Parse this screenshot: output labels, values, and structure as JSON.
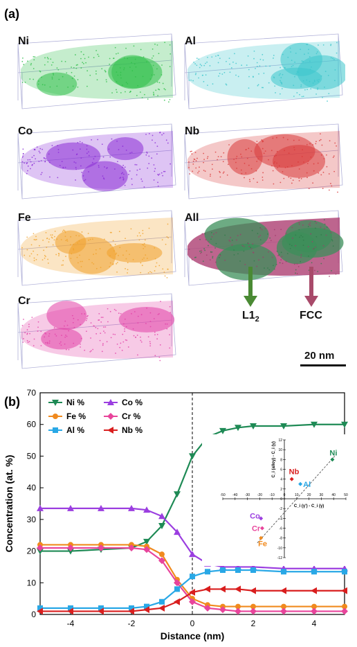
{
  "panel_a": {
    "label": "(a)",
    "tiles": [
      {
        "element": "Ni",
        "color": "#2fbf4a"
      },
      {
        "element": "Al",
        "color": "#3cc6cc"
      },
      {
        "element": "Co",
        "color": "#8a2bd6"
      },
      {
        "element": "Nb",
        "color": "#d93a3a"
      },
      {
        "element": "Fe",
        "color": "#f0a12a"
      },
      {
        "element": "All",
        "color": "#3c8f5a"
      },
      {
        "element": "Cr",
        "color": "#e23fa6"
      }
    ],
    "arrow_l12": "L1",
    "arrow_l12_sub": "2",
    "arrow_fcc": "FCC",
    "scale_bar": "20 nm"
  },
  "panel_b": {
    "label": "(b)"
  },
  "chart_data": {
    "type": "line",
    "xlabel": "Distance (nm)",
    "ylabel": "Concentration (at. %)",
    "xlim": [
      -5,
      5
    ],
    "ylim": [
      0,
      70
    ],
    "xticks": [
      "-4",
      "-2",
      "0",
      "2",
      "4"
    ],
    "yticks": [
      "0",
      "10",
      "20",
      "30",
      "40",
      "50",
      "60",
      "70"
    ],
    "x": [
      -5,
      -4,
      -3,
      -2,
      -1.5,
      -1,
      -0.5,
      0,
      0.5,
      1,
      1.5,
      2,
      3,
      4,
      5
    ],
    "series": [
      {
        "name": "Ni %",
        "color": "#1e8a55",
        "marker": "tri-down",
        "values": [
          20,
          20,
          20.5,
          21,
          23,
          28,
          38,
          50,
          56,
          58,
          59,
          59.5,
          59.5,
          60,
          60
        ]
      },
      {
        "name": "Co %",
        "color": "#9b3ee0",
        "marker": "tri-up",
        "values": [
          33.5,
          33.5,
          33.5,
          33.5,
          33,
          31,
          26,
          19,
          16,
          15,
          15,
          15,
          14.5,
          14.5,
          14.5
        ]
      },
      {
        "name": "Fe %",
        "color": "#f08a1e",
        "marker": "circle",
        "values": [
          22,
          22,
          22,
          22,
          21.5,
          19,
          11,
          5,
          3,
          2.5,
          2.5,
          2.5,
          2.5,
          2.5,
          2.5
        ]
      },
      {
        "name": "Cr %",
        "color": "#e8449b",
        "marker": "diamond",
        "values": [
          21,
          21,
          21,
          21,
          20.5,
          17,
          10,
          4,
          2,
          1.5,
          1,
          1,
          1,
          1,
          1
        ]
      },
      {
        "name": "Al %",
        "color": "#29a8e6",
        "marker": "square",
        "values": [
          2,
          2,
          2,
          2,
          2.5,
          4,
          8,
          12,
          13.5,
          14,
          14,
          14,
          13.5,
          13.5,
          13.5
        ]
      },
      {
        "name": "Nb %",
        "color": "#d91e1e",
        "marker": "tri-left",
        "values": [
          1,
          1,
          1,
          1,
          1.5,
          2,
          4,
          7,
          8,
          8,
          8,
          7.5,
          7.5,
          7.5,
          7.5
        ]
      }
    ],
    "vline_x": 0,
    "inset": {
      "xlabel": "C_i (γ') - C_i (γ)",
      "ylabel": "C_i (alloy) - C_i (γ)",
      "xlim": [
        -50,
        50
      ],
      "ylim": [
        -12,
        12
      ],
      "xticks": [
        "-50",
        "-40",
        "-30",
        "-20",
        "-10",
        "0",
        "10",
        "20",
        "30",
        "40",
        "50"
      ],
      "yticks": [
        "12",
        "10",
        "8",
        "6",
        "4",
        "2",
        "0",
        "-2",
        "-4",
        "-6",
        "-8",
        "-10",
        "-12"
      ],
      "points": [
        {
          "label": "Ni",
          "x": 39,
          "y": 8,
          "color": "#1e8a55"
        },
        {
          "label": "Nb",
          "x": 6,
          "y": 4,
          "color": "#d91e1e"
        },
        {
          "label": "Al",
          "x": 13,
          "y": 3,
          "color": "#29a8e6"
        },
        {
          "label": "Co",
          "x": -19,
          "y": -4,
          "color": "#9b3ee0"
        },
        {
          "label": "Cr",
          "x": -18,
          "y": -6,
          "color": "#e8449b"
        },
        {
          "label": "Fe",
          "x": -19,
          "y": -8,
          "color": "#f08a1e"
        }
      ]
    }
  }
}
